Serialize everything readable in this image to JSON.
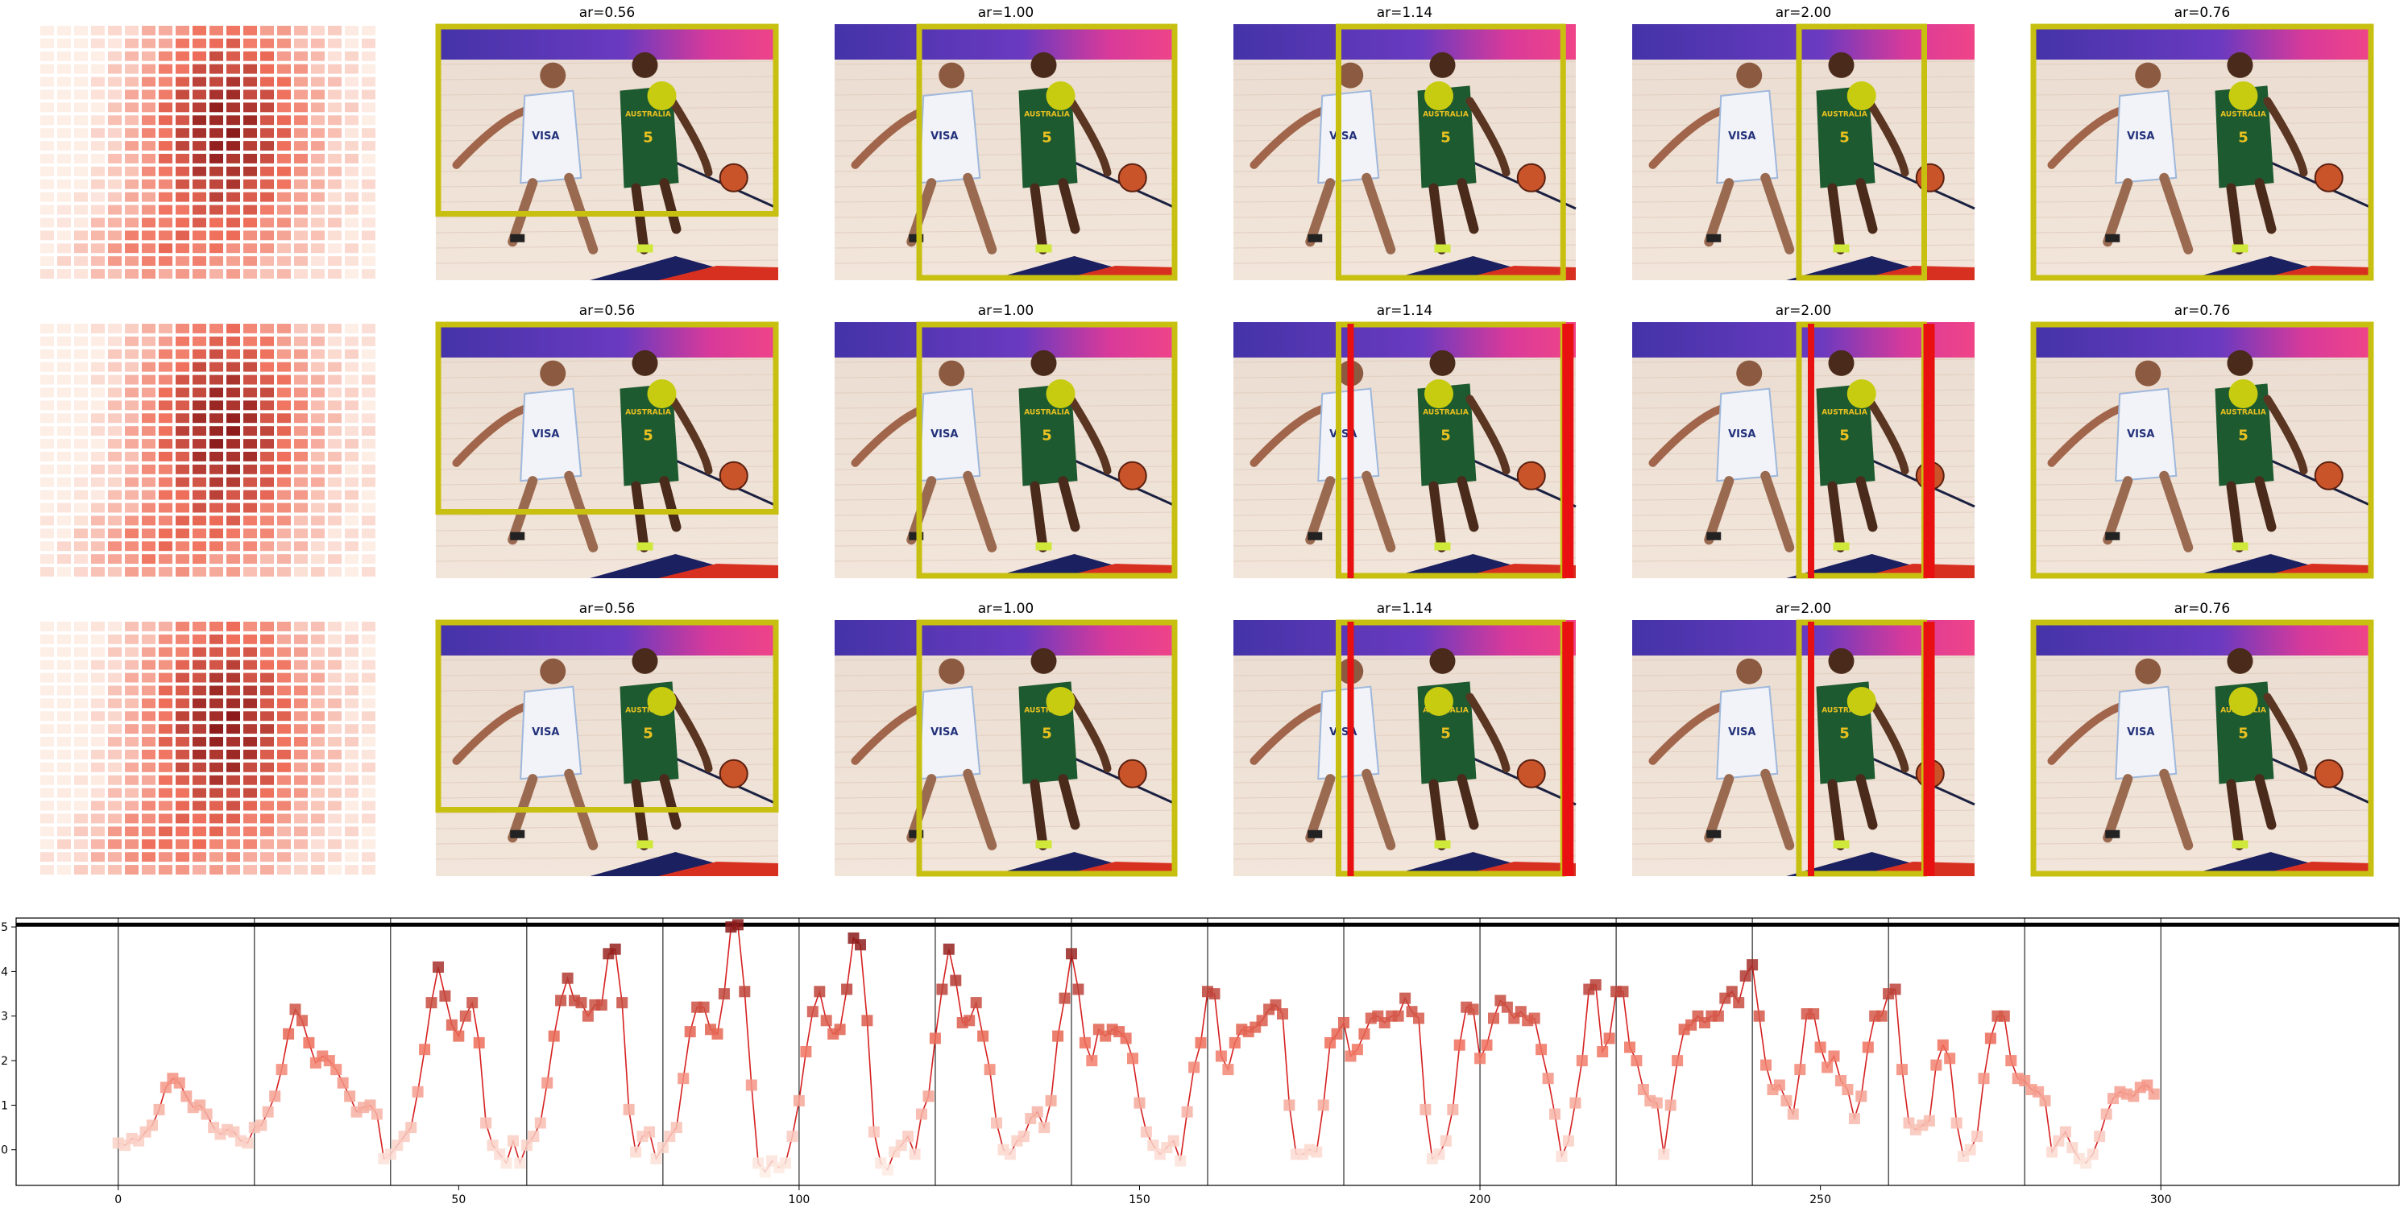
{
  "figure": {
    "panel_titles": [
      "ar=0.56",
      "ar=1.00",
      "ar=1.14",
      "ar=2.00",
      "ar=0.76"
    ],
    "photo_caption_text": "AUSTRALIA",
    "photo_jersey_number": "5",
    "photo_jersey_sponsor": "VISA",
    "colors": {
      "box_yellow": "#c8c010",
      "box_red": "#e81010",
      "dot_yellow": "#c8cc10",
      "line_red": "#d62020",
      "heat_low": "#fdeee6",
      "heat_high": "#8b1a1a"
    },
    "rows": [
      {
        "panels": [
          {
            "title_index": 0,
            "red_bars": false
          },
          {
            "title_index": 1,
            "red_bars": false
          },
          {
            "title_index": 2,
            "red_bars": false
          },
          {
            "title_index": 3,
            "red_bars": false
          },
          {
            "title_index": 4,
            "red_bars": false
          }
        ]
      },
      {
        "panels": [
          {
            "title_index": 0,
            "red_bars": false
          },
          {
            "title_index": 1,
            "red_bars": false
          },
          {
            "title_index": 2,
            "red_bars": true
          },
          {
            "title_index": 3,
            "red_bars": true
          },
          {
            "title_index": 4,
            "red_bars": false
          }
        ]
      },
      {
        "panels": [
          {
            "title_index": 0,
            "red_bars": false
          },
          {
            "title_index": 1,
            "red_bars": false
          },
          {
            "title_index": 2,
            "red_bars": true
          },
          {
            "title_index": 3,
            "red_bars": true
          },
          {
            "title_index": 4,
            "red_bars": false
          }
        ]
      }
    ]
  },
  "chart_data": {
    "type": "line",
    "title": "",
    "xlabel": "",
    "ylabel": "",
    "xlim": [
      -15,
      335
    ],
    "ylim": [
      -0.8,
      5.2
    ],
    "xticks": [
      0,
      50,
      100,
      150,
      200,
      250,
      300
    ],
    "yticks": [
      0,
      1,
      2,
      3,
      4,
      5
    ],
    "grid": false,
    "vertical_separators": [
      0,
      20,
      40,
      60,
      80,
      100,
      120,
      140,
      160,
      180,
      200,
      220,
      240,
      260,
      280,
      300
    ],
    "threshold_line": 5.05,
    "marker": "square",
    "series": [
      {
        "values": [
          0.15,
          0.1,
          0.25,
          0.2,
          0.4,
          0.55,
          0.9,
          1.4,
          1.6,
          1.5,
          1.2,
          0.95,
          1.0,
          0.8,
          0.5,
          0.35,
          0.45,
          0.4,
          0.2,
          0.15,
          0.5,
          0.55,
          0.85,
          1.2,
          1.8,
          2.6,
          3.15,
          2.9,
          2.4,
          1.95,
          2.1,
          2.0,
          1.8,
          1.5,
          1.2,
          0.85,
          0.95,
          1.0,
          0.8,
          -0.2,
          -0.1,
          0.1,
          0.3,
          0.5,
          1.3,
          2.25,
          3.3,
          4.1,
          3.45,
          2.8,
          2.55,
          3.0,
          3.3,
          2.4,
          0.6,
          0.1,
          -0.1,
          -0.3,
          0.2,
          -0.3,
          0.1,
          0.3,
          0.6,
          1.5,
          2.55,
          3.35,
          3.85,
          3.35,
          3.3,
          3.0,
          3.25,
          3.25,
          4.4,
          4.5,
          3.3,
          0.9,
          -0.05,
          0.3,
          0.4,
          -0.2,
          0.05,
          0.3,
          0.5,
          1.6,
          2.65,
          3.2,
          3.2,
          2.7,
          2.6,
          3.5,
          5.0,
          5.05,
          3.55,
          1.45,
          -0.3,
          -0.5,
          -0.25,
          -0.4,
          -0.3,
          0.3,
          1.1,
          2.2,
          3.1,
          3.55,
          2.9,
          2.6,
          2.7,
          3.6,
          4.75,
          4.6,
          2.9,
          0.4,
          -0.3,
          -0.45,
          -0.05,
          0.1,
          0.3,
          -0.1,
          0.8,
          1.2,
          2.5,
          3.6,
          4.5,
          3.8,
          2.85,
          2.9,
          3.3,
          2.55,
          1.8,
          0.6,
          0.0,
          -0.1,
          0.2,
          0.3,
          0.7,
          0.85,
          0.5,
          1.1,
          2.55,
          3.4,
          4.4,
          3.6,
          2.4,
          2.0,
          2.7,
          2.55,
          2.7,
          2.65,
          2.5,
          2.05,
          1.05,
          0.4,
          0.1,
          -0.1,
          0.05,
          0.2,
          -0.25,
          0.85,
          1.85,
          2.4,
          3.55,
          3.5,
          2.1,
          1.8,
          2.4,
          2.7,
          2.65,
          2.75,
          2.9,
          3.15,
          3.25,
          3.05,
          1.0,
          -0.1,
          -0.1,
          0.0,
          -0.05,
          1.0,
          2.4,
          2.6,
          2.85,
          2.1,
          2.25,
          2.6,
          2.95,
          3.0,
          2.85,
          3.0,
          3.0,
          3.4,
          3.1,
          2.95,
          0.9,
          -0.2,
          -0.1,
          0.2,
          0.9,
          2.35,
          3.2,
          3.15,
          2.05,
          2.35,
          2.95,
          3.35,
          3.2,
          2.95,
          3.1,
          2.9,
          2.95,
          2.25,
          1.6,
          0.8,
          -0.15,
          0.2,
          1.05,
          2.0,
          3.6,
          3.7,
          2.2,
          2.5,
          3.55,
          3.55,
          2.3,
          2.0,
          1.35,
          1.1,
          1.05,
          -0.1,
          1.0,
          2.0,
          2.7,
          2.8,
          3.0,
          2.85,
          3.0,
          3.0,
          3.4,
          3.55,
          3.3,
          3.9,
          4.15,
          3.0,
          1.9,
          1.35,
          1.45,
          1.1,
          0.8,
          1.8,
          3.05,
          3.05,
          2.3,
          1.85,
          2.1,
          1.55,
          1.35,
          0.7,
          1.2,
          2.3,
          3.0,
          3.0,
          3.5,
          3.6,
          1.8,
          0.6,
          0.45,
          0.55,
          0.65,
          1.9,
          2.35,
          2.05,
          0.6,
          -0.15,
          0.0,
          0.3,
          1.6,
          2.5,
          3.0,
          3.0,
          2.0,
          1.6,
          1.55,
          1.35,
          1.3,
          1.1,
          -0.05,
          0.2,
          0.4,
          0.05,
          -0.2,
          -0.3,
          -0.1,
          0.3,
          0.8,
          1.15,
          1.3,
          1.25,
          1.2,
          1.4,
          1.45,
          1.25
        ]
      }
    ]
  }
}
